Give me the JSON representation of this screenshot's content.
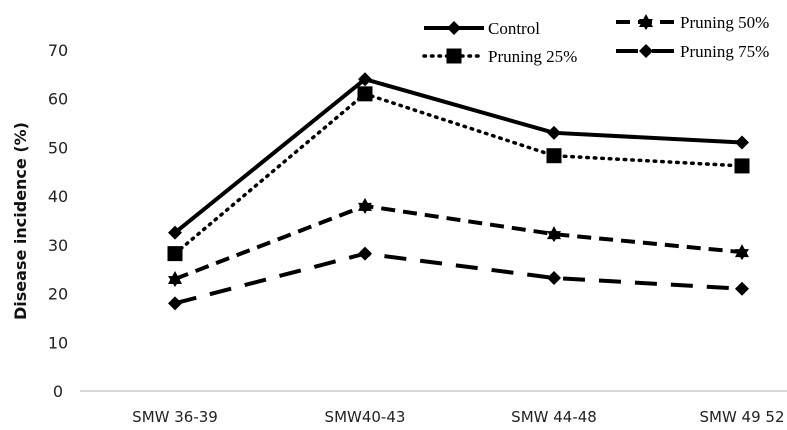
{
  "chart_data": {
    "type": "line",
    "ylabel": "Disease incidence (%)",
    "xlabel": "",
    "ylim": [
      0,
      70
    ],
    "yticks": [
      0,
      10,
      20,
      30,
      40,
      50,
      60,
      70
    ],
    "categories": [
      "SMW 36-39",
      "SMW40-43",
      "SMW 44-48",
      "SMW 49 52"
    ],
    "legend": "top-right",
    "grid": false,
    "series": [
      {
        "name": "Control",
        "values": [
          32.5,
          64,
          53,
          51
        ],
        "line": "solid",
        "marker": "diamond",
        "color": "#000000"
      },
      {
        "name": "Pruning 25%",
        "values": [
          28.2,
          61,
          48.3,
          46.2
        ],
        "line": "dotted",
        "marker": "square",
        "color": "#000000"
      },
      {
        "name": "Pruning 50%",
        "values": [
          23,
          38,
          32.2,
          28.5
        ],
        "line": "dashed",
        "marker": "triangle",
        "color": "#000000"
      },
      {
        "name": "Pruning 75%",
        "values": [
          18,
          28.2,
          23.2,
          21
        ],
        "line": "longdash",
        "marker": "diamond",
        "color": "#000000"
      }
    ]
  }
}
